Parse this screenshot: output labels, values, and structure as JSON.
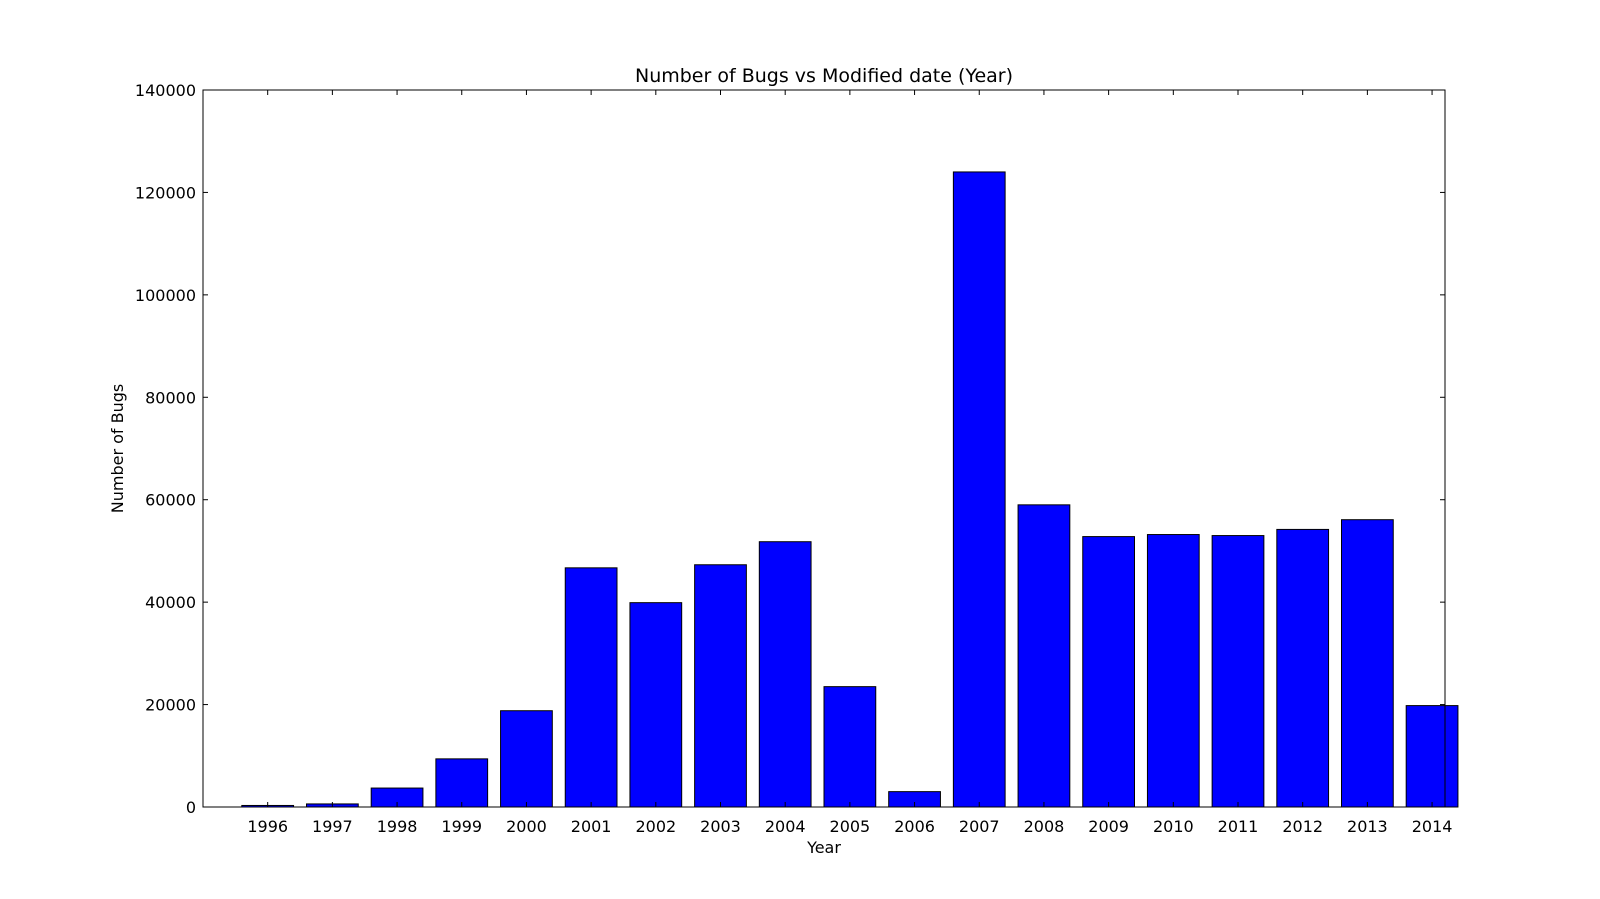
{
  "chart_data": {
    "type": "bar",
    "title": "Number of Bugs vs Modified date (Year)",
    "xlabel": "Year",
    "ylabel": "Number of Bugs",
    "categories": [
      "1996",
      "1997",
      "1998",
      "1999",
      "2000",
      "2001",
      "2002",
      "2003",
      "2004",
      "2005",
      "2006",
      "2007",
      "2008",
      "2009",
      "2010",
      "2011",
      "2012",
      "2013",
      "2014"
    ],
    "values": [
      300,
      600,
      3700,
      9400,
      18800,
      46700,
      39900,
      47300,
      51800,
      23500,
      3000,
      124000,
      59000,
      52800,
      53200,
      53000,
      54200,
      56100,
      19800
    ],
    "ylim": [
      0,
      140000
    ],
    "yticks": [
      0,
      20000,
      40000,
      60000,
      80000,
      100000,
      120000,
      140000
    ],
    "xlim": [
      -1,
      18.2
    ],
    "bar_color": "#0000ff",
    "edge_color": "#000000",
    "grid": false,
    "legend": "none"
  }
}
